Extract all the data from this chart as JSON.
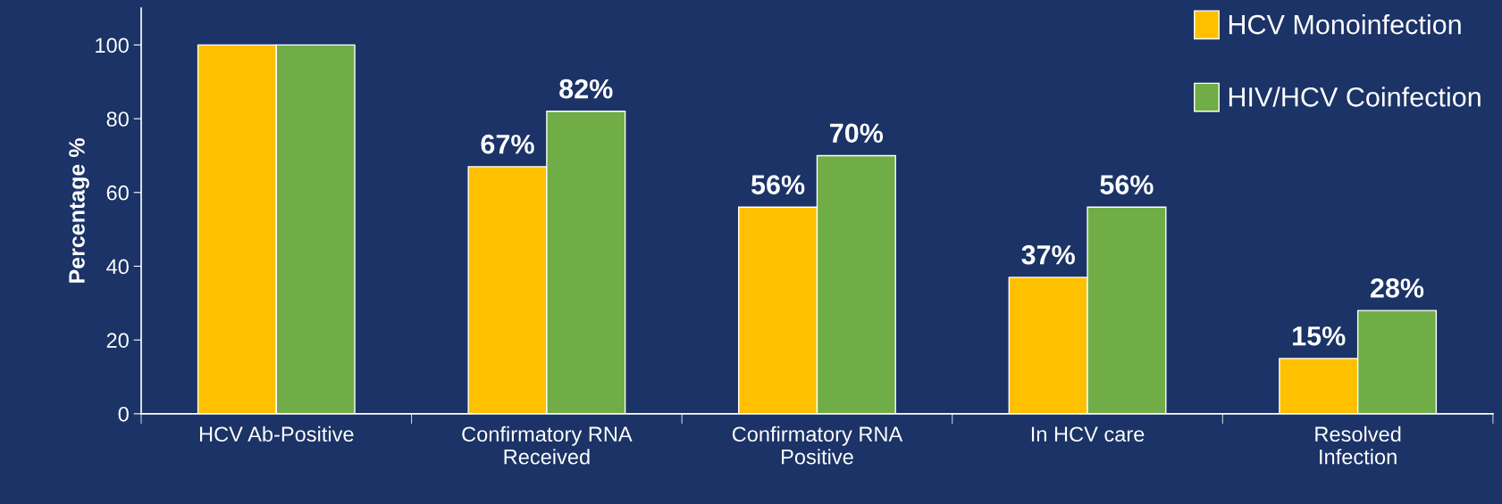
{
  "chart_data": {
    "type": "bar",
    "ylabel": "Percentage %",
    "categories": [
      "HCV Ab-Positive",
      "Confirmatory RNA Received",
      "Confirmatory RNA Positive",
      "In HCV care",
      "Resolved Infection"
    ],
    "series": [
      {
        "name": "HCV Monoinfection",
        "color": "#ffc000",
        "values": [
          100,
          67,
          56,
          37,
          15
        ],
        "value_labels": [
          null,
          "67%",
          "56%",
          "37%",
          "15%"
        ]
      },
      {
        "name": "HIV/HCV Coinfection",
        "color": "#70ad47",
        "values": [
          100,
          82,
          70,
          56,
          28
        ],
        "value_labels": [
          null,
          "82%",
          "70%",
          "56%",
          "28%"
        ]
      }
    ],
    "ylim": [
      0,
      110
    ],
    "yticks": [
      0,
      20,
      40,
      60,
      80,
      100
    ],
    "grid": false,
    "legend": "top right"
  }
}
